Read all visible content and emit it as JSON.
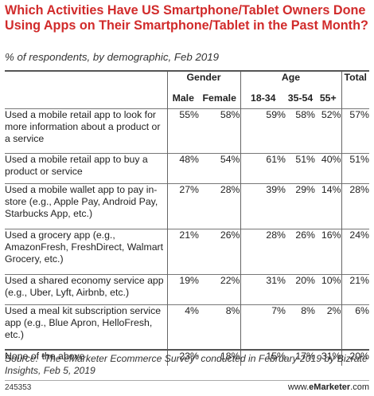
{
  "title": "Which Activities Have US Smartphone/Tablet Owners Done Using Apps on Their Smartphone/Tablet in the Past Month?",
  "subtitle": "% of respondents, by demographic, Feb 2019",
  "chart_data": {
    "type": "table",
    "title": "Which Activities Have US Smartphone/Tablet Owners Done Using Apps on Their Smartphone/Tablet in the Past Month?",
    "group_headers": [
      "Gender",
      "Age",
      "Total"
    ],
    "columns": [
      "Male",
      "Female",
      "18-34",
      "35-54",
      "55+",
      "Total"
    ],
    "rows": [
      {
        "label": "Used a mobile retail app to look for more information about a product or a service",
        "values": [
          "55%",
          "58%",
          "59%",
          "58%",
          "52%",
          "57%"
        ]
      },
      {
        "label": "Used a mobile retail app to buy a product or service",
        "values": [
          "48%",
          "54%",
          "61%",
          "51%",
          "40%",
          "51%"
        ]
      },
      {
        "label": "Used a mobile wallet app to pay in-store (e.g., Apple Pay, Android Pay, Starbucks App, etc.)",
        "values": [
          "27%",
          "28%",
          "39%",
          "29%",
          "14%",
          "28%"
        ]
      },
      {
        "label": "Used a grocery app (e.g., AmazonFresh, FreshDirect, Walmart Grocery, etc.)",
        "values": [
          "21%",
          "26%",
          "28%",
          "26%",
          "16%",
          "24%"
        ]
      },
      {
        "label": "Used a shared economy service app (e.g., Uber, Lyft, Airbnb, etc.)",
        "values": [
          "19%",
          "22%",
          "31%",
          "20%",
          "10%",
          "21%"
        ]
      },
      {
        "label": "Used a meal kit subscription service app (e.g., Blue Apron, HelloFresh, etc.)",
        "values": [
          "4%",
          "8%",
          "7%",
          "8%",
          "2%",
          "6%"
        ]
      },
      {
        "label": "None of the above",
        "values": [
          "23%",
          "18%",
          "15%",
          "17%",
          "31%",
          "20%"
        ]
      }
    ]
  },
  "source": "Source: \"The eMarketer Ecommerce Survey\" conducted in February 2019 by Bizrate Insights, Feb 5, 2019",
  "chart_id": "245353",
  "brand": {
    "prefix": "www.",
    "name": "eMarketer",
    "suffix": ".com"
  }
}
